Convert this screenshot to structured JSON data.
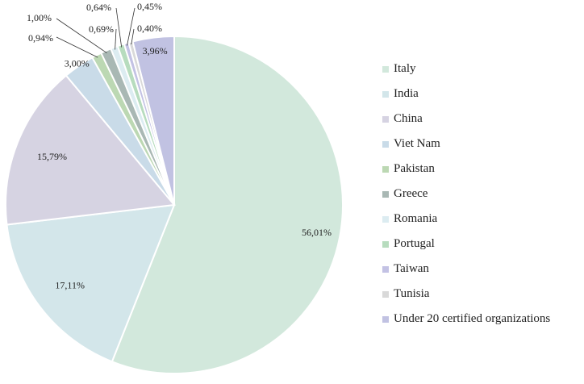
{
  "chart_data": {
    "type": "pie",
    "title": "",
    "legend_position": "right",
    "slices": [
      {
        "name": "Italy",
        "value": 56.01,
        "label": "56,01%",
        "color": "#d2e8dc"
      },
      {
        "name": "India",
        "value": 17.11,
        "label": "17,11%",
        "color": "#d3e6ea"
      },
      {
        "name": "China",
        "value": 15.79,
        "label": "15,79%",
        "color": "#d6d3e2"
      },
      {
        "name": "Viet Nam",
        "value": 3.0,
        "label": "3,00%",
        "color": "#c9dbe8"
      },
      {
        "name": "Pakistan",
        "value": 0.94,
        "label": "0,94%",
        "color": "#bcd8b3"
      },
      {
        "name": "Greece",
        "value": 1.0,
        "label": "1,00%",
        "color": "#a9b8b4"
      },
      {
        "name": "Romania",
        "value": 0.69,
        "label": "0,69%",
        "color": "#dcecf1"
      },
      {
        "name": "Portugal",
        "value": 0.64,
        "label": "0,64%",
        "color": "#b7dcbe"
      },
      {
        "name": "Taiwan",
        "value": 0.45,
        "label": "0,45%",
        "color": "#c3c2e4"
      },
      {
        "name": "Tunisia",
        "value": 0.4,
        "label": "0,40%",
        "color": "#d9d9d9"
      },
      {
        "name": "Under 20 certified organizations",
        "value": 3.96,
        "label": "3,96%",
        "color": "#c1c2e2"
      }
    ]
  }
}
